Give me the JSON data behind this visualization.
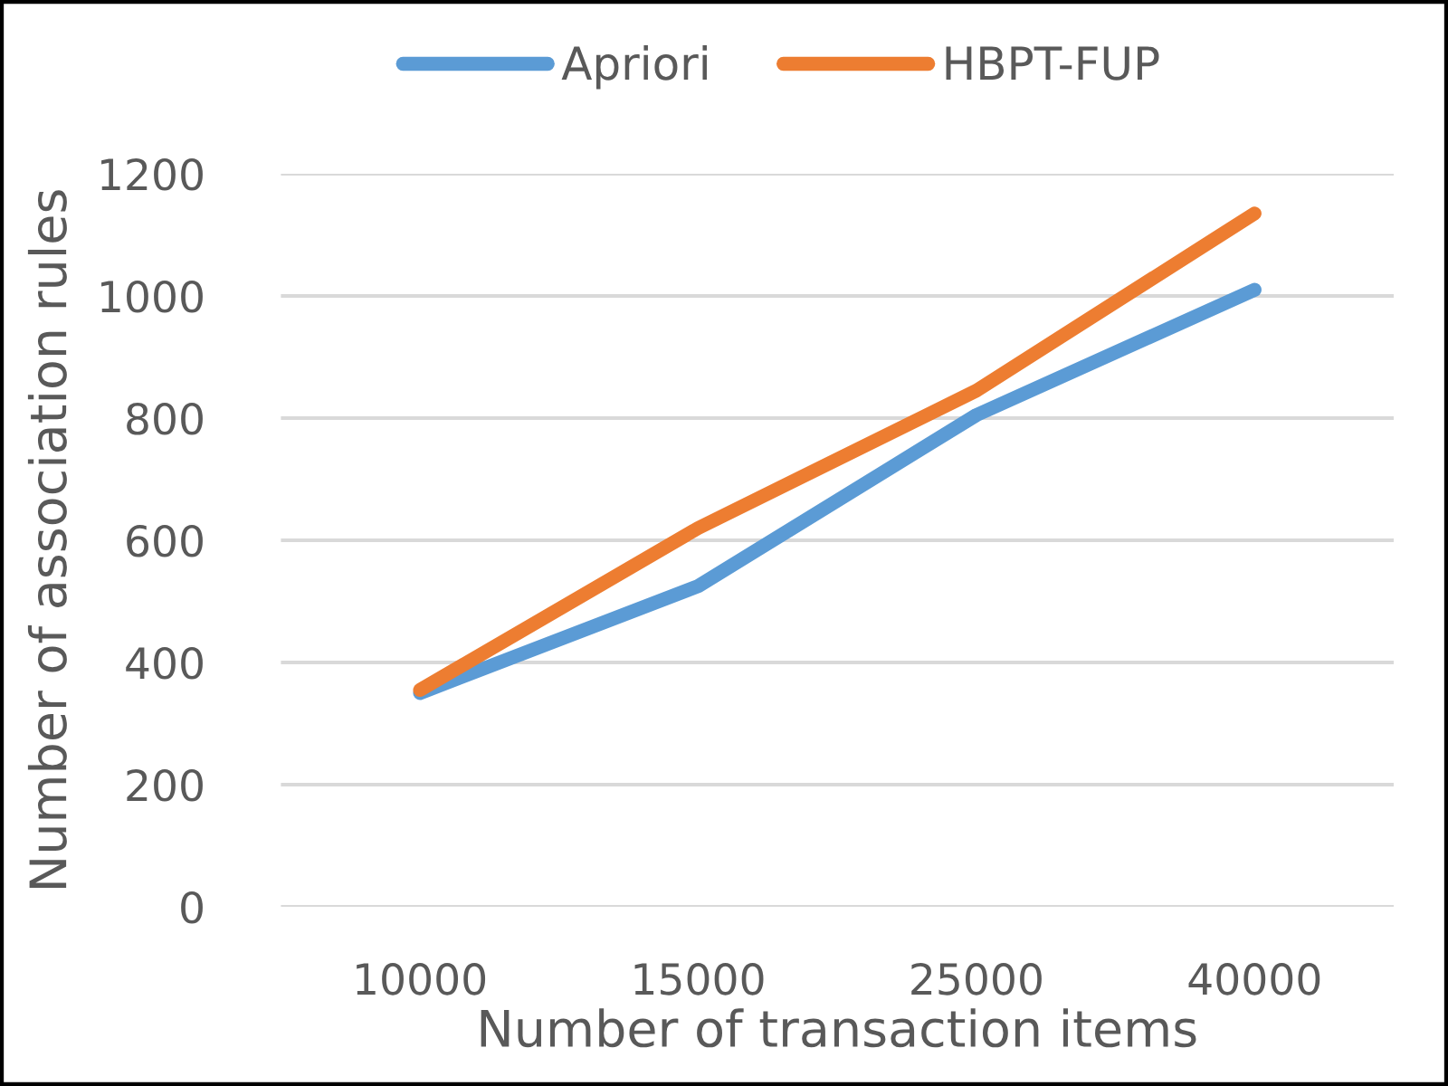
{
  "chart_data": {
    "type": "line",
    "xlabel": "Number of transaction items",
    "ylabel": "Number of association rules",
    "categories": [
      "10000",
      "15000",
      "25000",
      "40000"
    ],
    "series": [
      {
        "name": "Apriori",
        "color": "#5b9bd5",
        "values": [
          350,
          525,
          805,
          1010
        ]
      },
      {
        "name": "HBPT-FUP",
        "color": "#ed7d31",
        "values": [
          355,
          620,
          845,
          1135
        ]
      }
    ],
    "ylim": [
      0,
      1200
    ],
    "yticks": [
      0,
      200,
      400,
      600,
      800,
      1000,
      1200
    ],
    "grid": "y",
    "legend": "top",
    "line_style": "solid"
  }
}
